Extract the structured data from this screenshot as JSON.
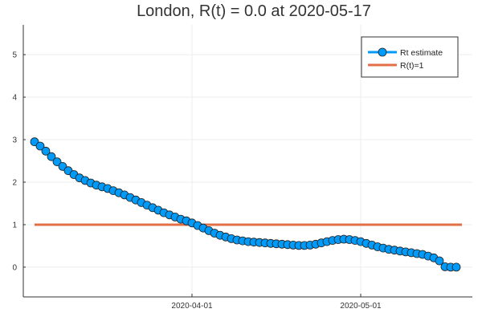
{
  "chart_data": {
    "type": "line",
    "title": "London, R(t) = 0.0 at 2020-05-17",
    "xlabel": "",
    "ylabel": "",
    "x_start": "2020-03-04",
    "ylim": [
      -0.7,
      5.7
    ],
    "y_ticks": [
      "0",
      "1",
      "2",
      "3",
      "4",
      "5"
    ],
    "x_ticks": [
      {
        "date": "2020-04-01",
        "label": "2020-04-01"
      },
      {
        "date": "2020-05-01",
        "label": "2020-05-01"
      }
    ],
    "grid": true,
    "legend_position": "top-right",
    "colors": {
      "estimate": "#009af9",
      "threshold": "#e26f46"
    },
    "series": [
      {
        "name": "Rt estimate",
        "marker": "circle",
        "values": [
          2.95,
          2.85,
          2.73,
          2.6,
          2.48,
          2.37,
          2.27,
          2.18,
          2.1,
          2.04,
          1.98,
          1.93,
          1.89,
          1.85,
          1.8,
          1.75,
          1.7,
          1.64,
          1.58,
          1.52,
          1.46,
          1.4,
          1.34,
          1.28,
          1.23,
          1.18,
          1.13,
          1.09,
          1.04,
          0.98,
          0.92,
          0.86,
          0.8,
          0.75,
          0.71,
          0.67,
          0.64,
          0.62,
          0.6,
          0.59,
          0.58,
          0.57,
          0.56,
          0.55,
          0.54,
          0.53,
          0.52,
          0.51,
          0.51,
          0.52,
          0.54,
          0.57,
          0.6,
          0.63,
          0.65,
          0.66,
          0.65,
          0.63,
          0.6,
          0.56,
          0.52,
          0.48,
          0.45,
          0.42,
          0.4,
          0.38,
          0.36,
          0.34,
          0.32,
          0.3,
          0.26,
          0.22,
          0.15,
          0.01,
          0.0,
          0.0
        ]
      },
      {
        "name": "R(t)=1",
        "marker": "none",
        "x_range": [
          "2020-03-04",
          "2020-05-19"
        ],
        "values": [
          1,
          1
        ]
      }
    ]
  }
}
